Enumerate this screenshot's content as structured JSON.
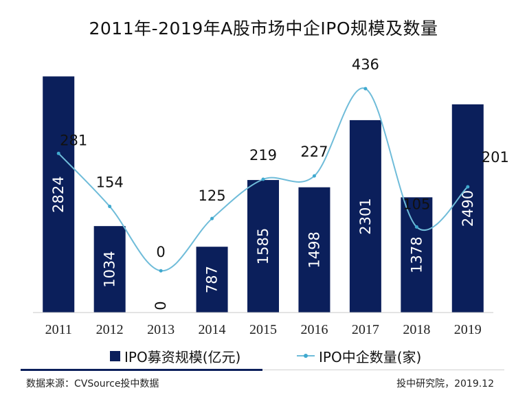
{
  "chart_data": {
    "type": "bar",
    "title": "2011年-2019年A股市场中企IPO规模及数量",
    "categories": [
      "2011",
      "2012",
      "2013",
      "2014",
      "2015",
      "2016",
      "2017",
      "2018",
      "2019"
    ],
    "series": [
      {
        "name": "IPO募资规模(亿元)",
        "type": "bar",
        "values": [
          2824,
          1034,
          0,
          787,
          1585,
          1498,
          2301,
          1378,
          2490
        ],
        "color": "#0b1f5b"
      },
      {
        "name": "IPO中企数量(家)",
        "type": "line",
        "values": [
          281,
          154,
          0,
          125,
          219,
          227,
          436,
          105,
          201
        ],
        "color": "#6fbcd9"
      }
    ],
    "bar_ylim": [
      0,
      2900
    ],
    "line_ylim": [
      -100,
      520
    ],
    "grid": false,
    "legend_position": "bottom"
  },
  "legend": {
    "bar_label": "IPO募资规模(亿元)",
    "line_label": "IPO中企数量(家)"
  },
  "footer": {
    "source": "数据来源：CVSource投中数据",
    "credit": "投中研究院，2019.12"
  }
}
